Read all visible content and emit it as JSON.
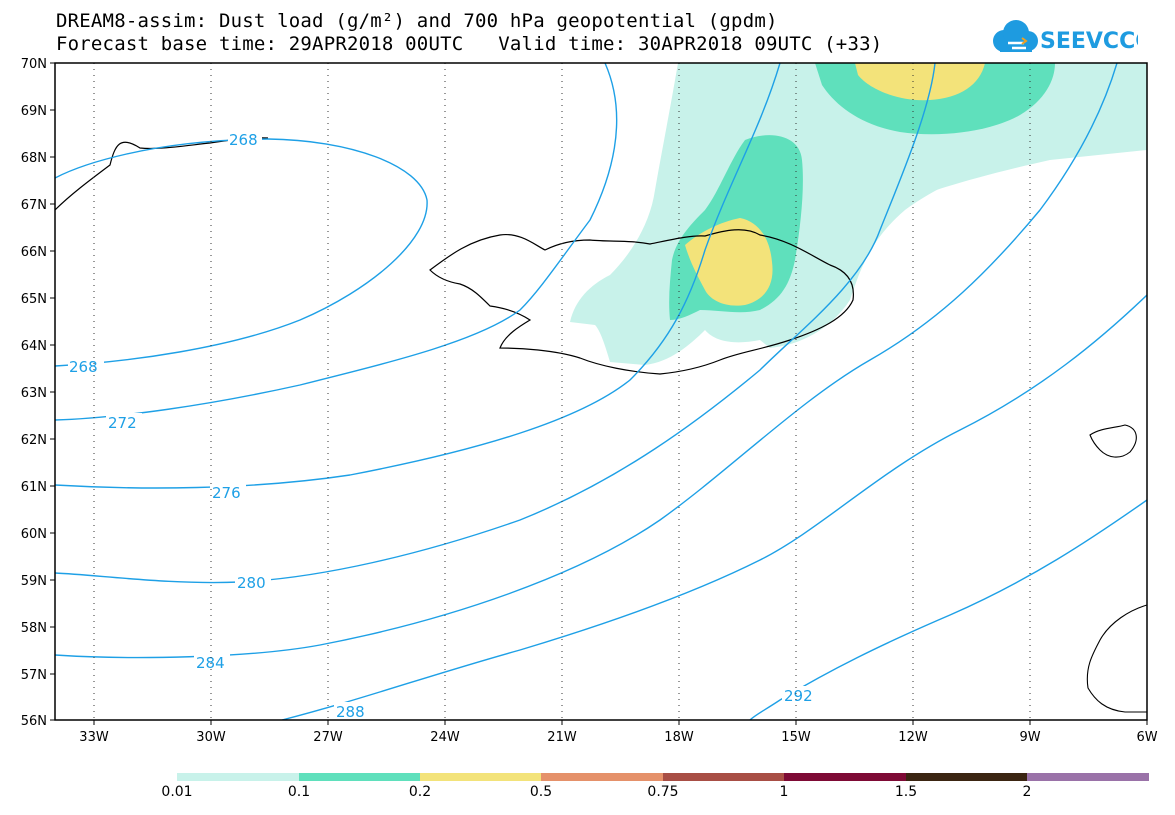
{
  "header": {
    "title_line1": "DREAM8-assim: Dust load (g/m²) and 700 hPa geopotential (gpdm)",
    "title_line2": "Forecast base time: 29APR2018 00UTC   Valid time: 30APR2018 09UTC (+33)",
    "logo_text": "SEEVCCC"
  },
  "map": {
    "lat_labels": [
      "70N",
      "69N",
      "68N",
      "67N",
      "66N",
      "65N",
      "64N",
      "63N",
      "62N",
      "61N",
      "60N",
      "59N",
      "58N",
      "57N",
      "56N"
    ],
    "lon_labels": [
      "33W",
      "30W",
      "27W",
      "24W",
      "21W",
      "18W",
      "15W",
      "12W",
      "9W",
      "6W"
    ],
    "contour_labels": [
      "268",
      "268",
      "272",
      "276",
      "280",
      "284",
      "288",
      "292"
    ],
    "contour_color": "#1ea0e6",
    "coastline_color": "#000000"
  },
  "legend": {
    "levels": [
      "0.01",
      "0.1",
      "0.2",
      "0.5",
      "0.75",
      "1",
      "1.5",
      "2"
    ],
    "colors": [
      "#c8f2ea",
      "#5fe0bc",
      "#f3e37a",
      "#e5916a",
      "#a84e45",
      "#7e0a35",
      "#3b2512",
      "#9a72a8"
    ]
  }
}
